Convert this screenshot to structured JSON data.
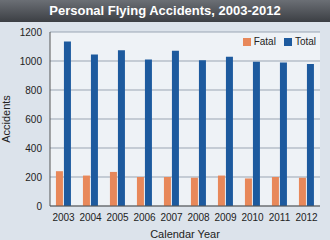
{
  "chart_data": {
    "type": "bar",
    "title": "Personal Flying Accidents, 2003-2012",
    "x_label": "Calendar Year",
    "y_label": "Accidents",
    "categories": [
      "2003",
      "2004",
      "2005",
      "2006",
      "2007",
      "2008",
      "2009",
      "2010",
      "2011",
      "2012"
    ],
    "series": [
      {
        "name": "Fatal",
        "color": "#e8885a",
        "values": [
          240,
          210,
          235,
          200,
          200,
          195,
          210,
          190,
          200,
          195
        ]
      },
      {
        "name": "Total",
        "color": "#1d5a9e",
        "values": [
          1135,
          1045,
          1075,
          1010,
          1070,
          1005,
          1030,
          995,
          990,
          980
        ]
      }
    ],
    "ylim": [
      0,
      1200
    ],
    "yticks": [
      0,
      200,
      400,
      600,
      800,
      1000,
      1200
    ],
    "grid": true,
    "legend": "upper right"
  }
}
